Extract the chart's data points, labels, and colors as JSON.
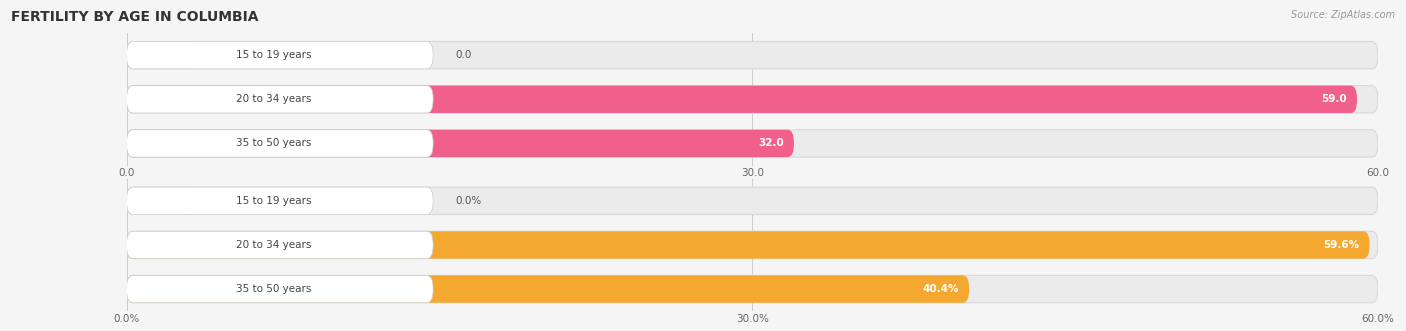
{
  "title": "FERTILITY BY AGE IN COLUMBIA",
  "source": "Source: ZipAtlas.com",
  "top_chart": {
    "categories": [
      "15 to 19 years",
      "20 to 34 years",
      "35 to 50 years"
    ],
    "values": [
      0.0,
      59.0,
      32.0
    ],
    "max_val": 60.0,
    "bar_color": "#F0608A",
    "bar_color_light": "#F5AABF",
    "bar_bg_color": "#EBEBEB",
    "tick_labels": [
      "0.0",
      "30.0",
      "60.0"
    ],
    "tick_values": [
      0.0,
      30.0,
      60.0
    ]
  },
  "bottom_chart": {
    "categories": [
      "15 to 19 years",
      "20 to 34 years",
      "35 to 50 years"
    ],
    "values": [
      0.0,
      59.6,
      40.4
    ],
    "max_val": 60.0,
    "bar_color": "#F5A830",
    "bar_color_light": "#F5CFAA",
    "bar_bg_color": "#EBEBEB",
    "tick_labels": [
      "0.0%",
      "30.0%",
      "60.0%"
    ],
    "tick_values": [
      0.0,
      30.0,
      60.0
    ]
  },
  "bg_color": "#F5F5F5",
  "title_fontsize": 10,
  "label_fontsize": 7.5,
  "value_fontsize": 7.5,
  "source_fontsize": 7
}
